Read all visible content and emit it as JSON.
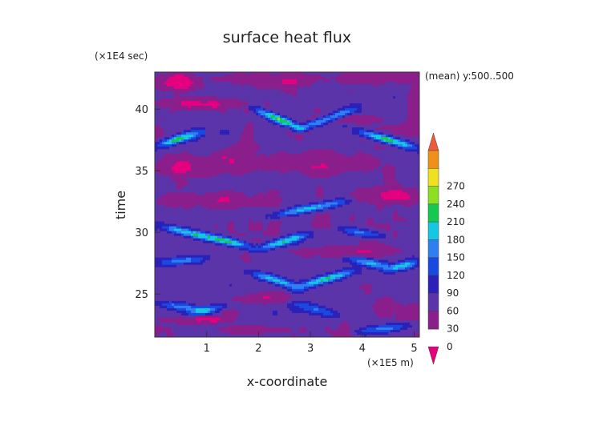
{
  "chart_data": {
    "type": "heatmap",
    "title": "surface heat flux",
    "xlabel": "x-coordinate",
    "ylabel": "time",
    "x_unit": "(×1E5 m)",
    "y_unit": "(×1E4 sec)",
    "note": "(mean) y:500..500",
    "xlim": [
      0,
      5.1
    ],
    "ylim": [
      21.5,
      43
    ],
    "x_ticks": [
      1,
      2,
      3,
      4,
      5
    ],
    "y_ticks": [
      25,
      30,
      35,
      40
    ],
    "colorbar": {
      "levels": [
        0,
        30,
        60,
        90,
        120,
        150,
        180,
        210,
        240,
        270
      ],
      "colors": [
        "#e4007f",
        "#8a1f8c",
        "#5a34a8",
        "#2b20b8",
        "#1a48e0",
        "#2f7ff0",
        "#14c8e4",
        "#14c850",
        "#8ce020",
        "#f0e020",
        "#f09018",
        "#ee5a3a"
      ]
    },
    "background_value": 40,
    "bands": [
      {
        "x": [
          0.0,
          0.9
        ],
        "t": [
          37.0,
          38.1
        ],
        "peak": 190
      },
      {
        "x": [
          1.9,
          2.9
        ],
        "t": [
          40.0,
          38.3
        ],
        "peak": 210
      },
      {
        "x": [
          2.7,
          3.9
        ],
        "t": [
          38.3,
          40.0
        ],
        "peak": 170
      },
      {
        "x": [
          3.9,
          5.1
        ],
        "t": [
          38.2,
          36.8
        ],
        "peak": 200
      },
      {
        "x": [
          2.2,
          3.8
        ],
        "t": [
          31.3,
          32.6
        ],
        "peak": 170
      },
      {
        "x": [
          0.1,
          1.0
        ],
        "t": [
          30.5,
          29.6
        ],
        "peak": 170
      },
      {
        "x": [
          0.8,
          1.9
        ],
        "t": [
          29.8,
          28.8
        ],
        "peak": 200
      },
      {
        "x": [
          1.9,
          3.0
        ],
        "t": [
          28.5,
          29.9
        ],
        "peak": 180
      },
      {
        "x": [
          3.5,
          4.5
        ],
        "t": [
          30.3,
          29.6
        ],
        "peak": 130
      },
      {
        "x": [
          0.0,
          1.0
        ],
        "t": [
          27.5,
          27.9
        ],
        "peak": 130
      },
      {
        "x": [
          3.7,
          4.6
        ],
        "t": [
          27.9,
          27.1
        ],
        "peak": 150
      },
      {
        "x": [
          4.5,
          5.1
        ],
        "t": [
          27.0,
          27.6
        ],
        "peak": 160
      },
      {
        "x": [
          1.8,
          2.8
        ],
        "t": [
          26.8,
          25.5
        ],
        "peak": 170
      },
      {
        "x": [
          2.7,
          3.9
        ],
        "t": [
          25.5,
          26.9
        ],
        "peak": 180
      },
      {
        "x": [
          0.0,
          1.2
        ],
        "t": [
          24.3,
          23.5
        ],
        "peak": 130
      },
      {
        "x": [
          0.6,
          1.4
        ],
        "t": [
          23.3,
          24.1
        ],
        "peak": 140
      },
      {
        "x": [
          3.9,
          5.0
        ],
        "t": [
          21.9,
          22.5
        ],
        "peak": 130
      },
      {
        "x": [
          2.6,
          3.6
        ],
        "t": [
          24.3,
          23.2
        ],
        "peak": 110
      }
    ],
    "low_patches": [
      {
        "x": [
          0.0,
          0.9
        ],
        "t": [
          41.5,
          42.8
        ]
      },
      {
        "x": [
          1.3,
          3.2
        ],
        "t": [
          41.8,
          42.9
        ]
      },
      {
        "x": [
          3.6,
          5.1
        ],
        "t": [
          42.0,
          43.0
        ]
      },
      {
        "x": [
          0.1,
          1.6
        ],
        "t": [
          40.0,
          40.9
        ]
      },
      {
        "x": [
          3.1,
          4.3
        ],
        "t": [
          38.8,
          39.6
        ]
      },
      {
        "x": [
          0.0,
          1.8
        ],
        "t": [
          34.6,
          36.3
        ]
      },
      {
        "x": [
          2.1,
          4.1
        ],
        "t": [
          34.7,
          36.6
        ]
      },
      {
        "x": [
          0.0,
          2.2
        ],
        "t": [
          32.0,
          33.2
        ]
      },
      {
        "x": [
          3.8,
          5.1
        ],
        "t": [
          32.4,
          33.6
        ]
      },
      {
        "x": [
          2.6,
          4.6
        ],
        "t": [
          28.0,
          28.8
        ]
      },
      {
        "x": [
          1.6,
          2.8
        ],
        "t": [
          24.2,
          25.1
        ]
      },
      {
        "x": [
          0.2,
          1.4
        ],
        "t": [
          22.6,
          23.2
        ]
      },
      {
        "x": [
          1.3,
          2.5
        ],
        "t": [
          21.8,
          22.4
        ]
      }
    ]
  }
}
